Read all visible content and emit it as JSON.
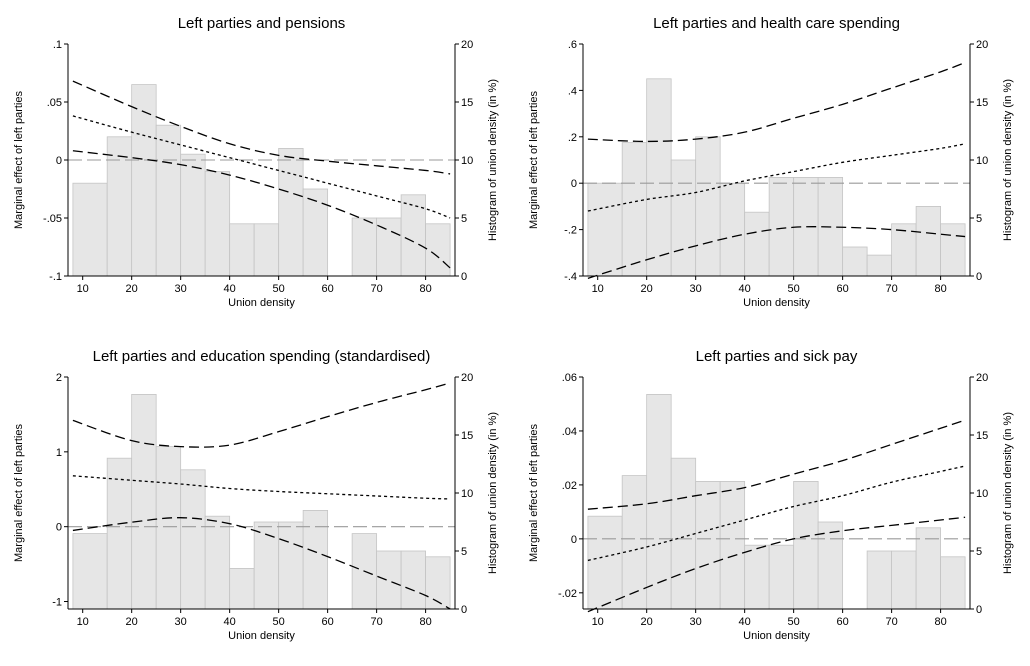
{
  "chart_data": [
    {
      "type": "line",
      "title": "Left parties and pensions",
      "xlabel": "Union density",
      "ylabel": "Marginal effect of left parties",
      "y2label": "Histogram of union density (in %)",
      "xlim": [
        7,
        86
      ],
      "ylim": [
        -0.1,
        0.1
      ],
      "y2lim": [
        0,
        20
      ],
      "xticks": [
        10,
        20,
        30,
        40,
        50,
        60,
        70,
        80
      ],
      "yticks": [
        -0.1,
        -0.05,
        0,
        0.05,
        0.1
      ],
      "ytick_labels": [
        "-.1",
        "-.05",
        "0",
        ".05",
        ".1"
      ],
      "y2ticks": [
        0,
        5,
        10,
        15,
        20
      ],
      "y2tick_labels": [
        "0",
        "5",
        "10",
        "15",
        "20"
      ],
      "histogram": {
        "bins": [
          [
            8,
            15
          ],
          [
            15,
            20
          ],
          [
            20,
            25
          ],
          [
            25,
            30
          ],
          [
            30,
            35
          ],
          [
            35,
            40
          ],
          [
            40,
            45
          ],
          [
            45,
            50
          ],
          [
            50,
            55
          ],
          [
            55,
            60
          ],
          [
            65,
            70
          ],
          [
            70,
            75
          ],
          [
            75,
            80
          ],
          [
            80,
            85
          ]
        ],
        "percent": [
          8,
          12,
          16.5,
          13,
          10.5,
          9,
          4.5,
          4.5,
          11,
          7.5,
          5,
          5,
          7,
          4.5
        ]
      },
      "estimate": {
        "x": [
          8,
          20,
          30,
          40,
          50,
          60,
          70,
          80,
          85
        ],
        "y": [
          0.038,
          0.024,
          0.013,
          0.002,
          -0.009,
          -0.02,
          -0.031,
          -0.042,
          -0.05
        ]
      },
      "upper_ci": {
        "x": [
          8,
          20,
          30,
          40,
          50,
          60,
          70,
          80,
          85
        ],
        "y": [
          0.068,
          0.046,
          0.029,
          0.014,
          0.004,
          -0.001,
          -0.005,
          -0.009,
          -0.012
        ]
      },
      "lower_ci": {
        "x": [
          8,
          20,
          30,
          40,
          50,
          60,
          70,
          80,
          85
        ],
        "y": [
          0.008,
          0.002,
          -0.004,
          -0.013,
          -0.025,
          -0.039,
          -0.056,
          -0.076,
          -0.093
        ]
      }
    },
    {
      "type": "line",
      "title": "Left parties and health care spending",
      "xlabel": "Union density",
      "ylabel": "Marginal effect of left parties",
      "y2label": "Histogram of union density (in %)",
      "xlim": [
        7,
        86
      ],
      "ylim": [
        -0.4,
        0.6
      ],
      "y2lim": [
        0,
        20
      ],
      "xticks": [
        10,
        20,
        30,
        40,
        50,
        60,
        70,
        80
      ],
      "yticks": [
        -0.4,
        -0.2,
        0,
        0.2,
        0.4,
        0.6
      ],
      "ytick_labels": [
        "-.4",
        "-.2",
        "0",
        ".2",
        ".4",
        ".6"
      ],
      "y2ticks": [
        0,
        5,
        10,
        15,
        20
      ],
      "y2tick_labels": [
        "0",
        "5",
        "10",
        "15",
        "20"
      ],
      "histogram": {
        "bins": [
          [
            8,
            15
          ],
          [
            15,
            20
          ],
          [
            20,
            25
          ],
          [
            25,
            30
          ],
          [
            30,
            35
          ],
          [
            35,
            40
          ],
          [
            40,
            45
          ],
          [
            45,
            50
          ],
          [
            50,
            55
          ],
          [
            55,
            60
          ],
          [
            60,
            65
          ],
          [
            65,
            70
          ],
          [
            70,
            75
          ],
          [
            75,
            80
          ],
          [
            80,
            85
          ]
        ],
        "percent": [
          8,
          11.5,
          17,
          10,
          12,
          8,
          5.5,
          8.5,
          8.5,
          8.5,
          2.5,
          1.8,
          4.5,
          6,
          4.5
        ]
      },
      "estimate": {
        "x": [
          8,
          20,
          30,
          40,
          50,
          60,
          70,
          80,
          85
        ],
        "y": [
          -0.12,
          -0.07,
          -0.04,
          0.01,
          0.05,
          0.09,
          0.12,
          0.15,
          0.17
        ]
      },
      "upper_ci": {
        "x": [
          8,
          20,
          30,
          40,
          50,
          60,
          70,
          80,
          85
        ],
        "y": [
          0.19,
          0.18,
          0.19,
          0.22,
          0.28,
          0.34,
          0.41,
          0.48,
          0.52
        ]
      },
      "lower_ci": {
        "x": [
          8,
          20,
          30,
          40,
          50,
          60,
          70,
          80,
          85
        ],
        "y": [
          -0.41,
          -0.33,
          -0.27,
          -0.22,
          -0.19,
          -0.19,
          -0.2,
          -0.22,
          -0.23
        ]
      }
    },
    {
      "type": "line",
      "title": "Left parties and education spending (standardised)",
      "xlabel": "Union density",
      "ylabel": "Marginal effect of left parties",
      "y2label": "Histogram of union density (in %)",
      "xlim": [
        7,
        86
      ],
      "ylim": [
        -1.1,
        2
      ],
      "y2lim": [
        0,
        20
      ],
      "xticks": [
        10,
        20,
        30,
        40,
        50,
        60,
        70,
        80
      ],
      "yticks": [
        -1,
        0,
        1,
        2
      ],
      "ytick_labels": [
        "-1",
        "0",
        "1",
        "2"
      ],
      "y2ticks": [
        0,
        5,
        10,
        15,
        20
      ],
      "y2tick_labels": [
        "0",
        "5",
        "10",
        "15",
        "20"
      ],
      "histogram": {
        "bins": [
          [
            8,
            15
          ],
          [
            15,
            20
          ],
          [
            20,
            25
          ],
          [
            25,
            30
          ],
          [
            30,
            35
          ],
          [
            35,
            40
          ],
          [
            40,
            45
          ],
          [
            45,
            50
          ],
          [
            50,
            55
          ],
          [
            55,
            60
          ],
          [
            65,
            70
          ],
          [
            70,
            75
          ],
          [
            75,
            80
          ],
          [
            80,
            85
          ]
        ],
        "percent": [
          6.5,
          13,
          18.5,
          14,
          12,
          8,
          3.5,
          7.5,
          7.5,
          8.5,
          6.5,
          5,
          5,
          4.5
        ]
      },
      "estimate": {
        "x": [
          8,
          20,
          30,
          40,
          50,
          60,
          70,
          80,
          85
        ],
        "y": [
          0.68,
          0.62,
          0.57,
          0.51,
          0.47,
          0.44,
          0.41,
          0.38,
          0.37
        ]
      },
      "upper_ci": {
        "x": [
          8,
          20,
          30,
          40,
          50,
          60,
          70,
          80,
          85
        ],
        "y": [
          1.42,
          1.15,
          1.07,
          1.09,
          1.27,
          1.47,
          1.66,
          1.83,
          1.92
        ]
      },
      "lower_ci": {
        "x": [
          8,
          20,
          30,
          40,
          50,
          60,
          70,
          80,
          85
        ],
        "y": [
          -0.05,
          0.06,
          0.12,
          0.04,
          -0.16,
          -0.4,
          -0.66,
          -0.92,
          -1.1
        ]
      }
    },
    {
      "type": "line",
      "title": "Left parties and sick pay",
      "xlabel": "Union density",
      "ylabel": "Marginal effect of left parties",
      "y2label": "Histogram of union density (in %)",
      "xlim": [
        7,
        86
      ],
      "ylim": [
        -0.026,
        0.06
      ],
      "y2lim": [
        0,
        20
      ],
      "xticks": [
        10,
        20,
        30,
        40,
        50,
        60,
        70,
        80
      ],
      "yticks": [
        -0.02,
        0,
        0.02,
        0.04,
        0.06
      ],
      "ytick_labels": [
        "-.02",
        "0",
        ".02",
        ".04",
        ".06"
      ],
      "y2ticks": [
        0,
        5,
        10,
        15,
        20
      ],
      "y2tick_labels": [
        "0",
        "5",
        "10",
        "15",
        "20"
      ],
      "histogram": {
        "bins": [
          [
            8,
            15
          ],
          [
            15,
            20
          ],
          [
            20,
            25
          ],
          [
            25,
            30
          ],
          [
            30,
            35
          ],
          [
            35,
            40
          ],
          [
            40,
            45
          ],
          [
            45,
            50
          ],
          [
            50,
            55
          ],
          [
            55,
            60
          ],
          [
            65,
            70
          ],
          [
            70,
            75
          ],
          [
            75,
            80
          ],
          [
            80,
            85
          ]
        ],
        "percent": [
          8,
          11.5,
          18.5,
          13,
          11,
          11,
          5.5,
          5.5,
          11,
          7.5,
          5,
          5,
          7,
          4.5
        ]
      },
      "estimate": {
        "x": [
          8,
          20,
          30,
          40,
          50,
          60,
          70,
          80,
          85
        ],
        "y": [
          -0.008,
          -0.003,
          0.002,
          0.007,
          0.012,
          0.016,
          0.021,
          0.025,
          0.027
        ]
      },
      "upper_ci": {
        "x": [
          8,
          20,
          30,
          40,
          50,
          60,
          70,
          80,
          85
        ],
        "y": [
          0.011,
          0.013,
          0.016,
          0.019,
          0.024,
          0.029,
          0.035,
          0.041,
          0.044
        ]
      },
      "lower_ci": {
        "x": [
          8,
          20,
          30,
          40,
          50,
          60,
          70,
          80,
          85
        ],
        "y": [
          -0.027,
          -0.018,
          -0.011,
          -0.005,
          0,
          0.003,
          0.005,
          0.007,
          0.008
        ]
      }
    }
  ]
}
